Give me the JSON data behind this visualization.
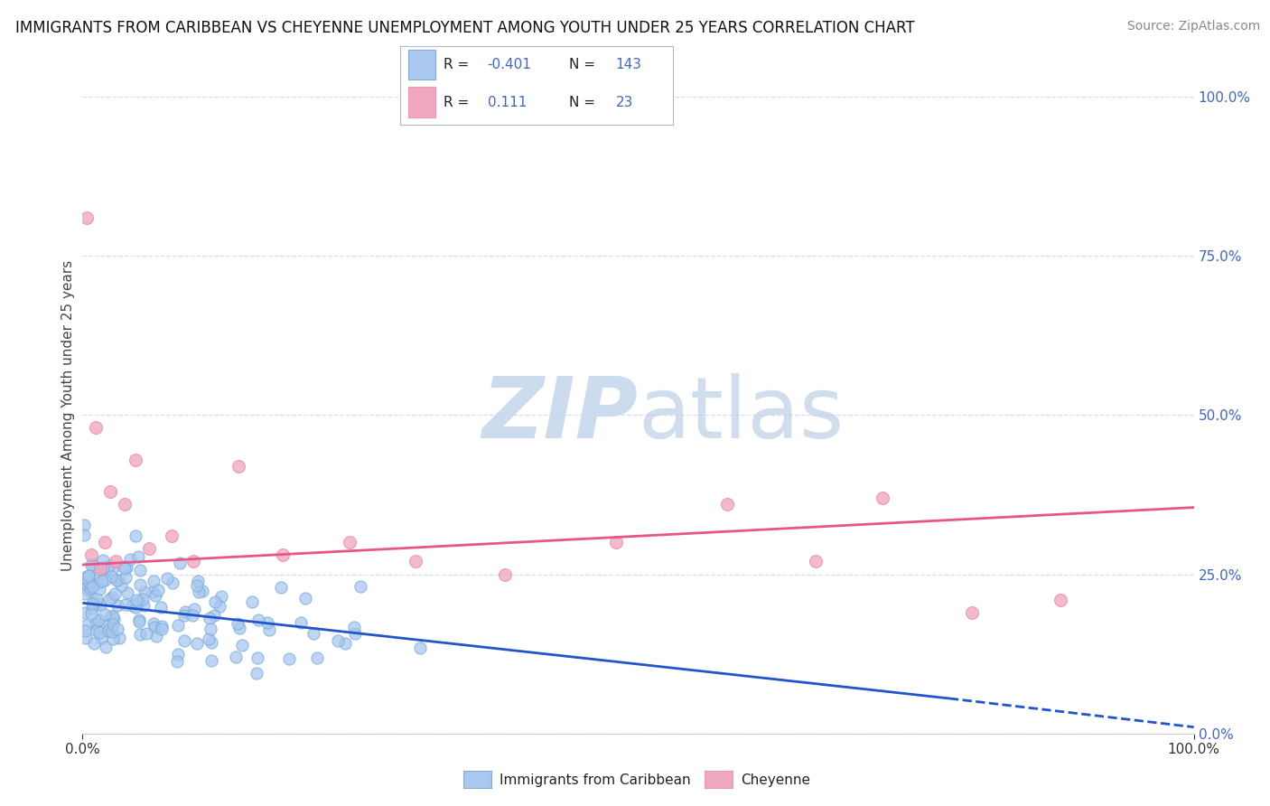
{
  "title": "IMMIGRANTS FROM CARIBBEAN VS CHEYENNE UNEMPLOYMENT AMONG YOUTH UNDER 25 YEARS CORRELATION CHART",
  "source": "Source: ZipAtlas.com",
  "ylabel": "Unemployment Among Youth under 25 years",
  "legend_entries": [
    {
      "label": "Immigrants from Caribbean",
      "color": "#a8c8f0",
      "R": -0.401,
      "N": 143
    },
    {
      "label": "Cheyenne",
      "color": "#f0a8c0",
      "R": 0.111,
      "N": 23
    }
  ],
  "axis_color": "#4466bb",
  "watermark_color": "#c8d8ee",
  "background_color": "#ffffff",
  "grid_color": "#d8ddf0",
  "ylim": [
    0,
    1.0
  ],
  "xlim": [
    0,
    1.0
  ],
  "right_yticks": [
    0.0,
    0.25,
    0.5,
    0.75,
    1.0
  ],
  "right_yticklabels": [
    "0.0%",
    "25.0%",
    "50.0%",
    "75.0%",
    "100.0%"
  ],
  "blue_line_x0": 0.0,
  "blue_line_x1": 0.78,
  "blue_line_x2": 1.0,
  "blue_line_y0": 0.205,
  "blue_line_y1": 0.055,
  "blue_line_y2": 0.01,
  "pink_line_x0": 0.0,
  "pink_line_x1": 1.0,
  "pink_line_y0": 0.265,
  "pink_line_y1": 0.355,
  "seed_blue": 42,
  "seed_pink": 77,
  "n_blue": 143,
  "n_pink": 23,
  "title_fontsize": 12,
  "source_fontsize": 10,
  "label_fontsize": 11,
  "tick_fontsize": 11
}
